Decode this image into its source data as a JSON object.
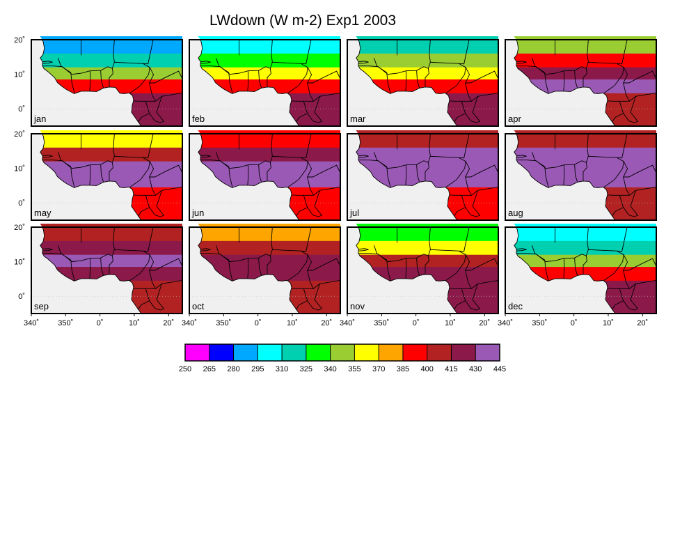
{
  "figure": {
    "title": "LWdown (W m-2) Exp1 2003"
  },
  "chart_data": {
    "type": "heatmap",
    "title": "LWdown (W m-2) Exp1 2003",
    "panels": [
      "jan",
      "feb",
      "mar",
      "apr",
      "may",
      "jun",
      "jul",
      "aug",
      "sep",
      "oct",
      "nov",
      "dec"
    ],
    "x_ticks": [
      "340˚",
      "350˚",
      "0˚",
      "10˚",
      "20˚"
    ],
    "y_ticks": [
      "20˚",
      "10˚",
      "0˚"
    ],
    "lon_range": [
      340,
      24
    ],
    "lat_range": [
      -5,
      20
    ],
    "colorbar": {
      "levels": [
        250,
        265,
        280,
        295,
        310,
        325,
        340,
        355,
        370,
        385,
        400,
        415,
        430,
        445
      ],
      "colors": [
        "#ff00ff",
        "#0000ff",
        "#00a8ff",
        "#00ffff",
        "#00cfb0",
        "#00ff00",
        "#9acd32",
        "#ffff00",
        "#ffa500",
        "#ff0000",
        "#b22222",
        "#8b1a4a",
        "#9b59b6"
      ]
    },
    "panel_levels_north_to_south": {
      "jan": [
        2,
        4,
        6,
        9,
        11
      ],
      "feb": [
        3,
        5,
        7,
        9,
        11
      ],
      "mar": [
        4,
        6,
        7,
        9,
        11
      ],
      "apr": [
        6,
        9,
        11,
        12,
        10
      ],
      "may": [
        7,
        10,
        12,
        12,
        9
      ],
      "jun": [
        9,
        11,
        12,
        12,
        9
      ],
      "jul": [
        10,
        12,
        12,
        12,
        9
      ],
      "aug": [
        10,
        12,
        12,
        12,
        10
      ],
      "sep": [
        10,
        11,
        12,
        11,
        10
      ],
      "oct": [
        8,
        10,
        11,
        11,
        10
      ],
      "nov": [
        5,
        7,
        10,
        11,
        11
      ],
      "dec": [
        3,
        4,
        6,
        9,
        11
      ]
    }
  }
}
